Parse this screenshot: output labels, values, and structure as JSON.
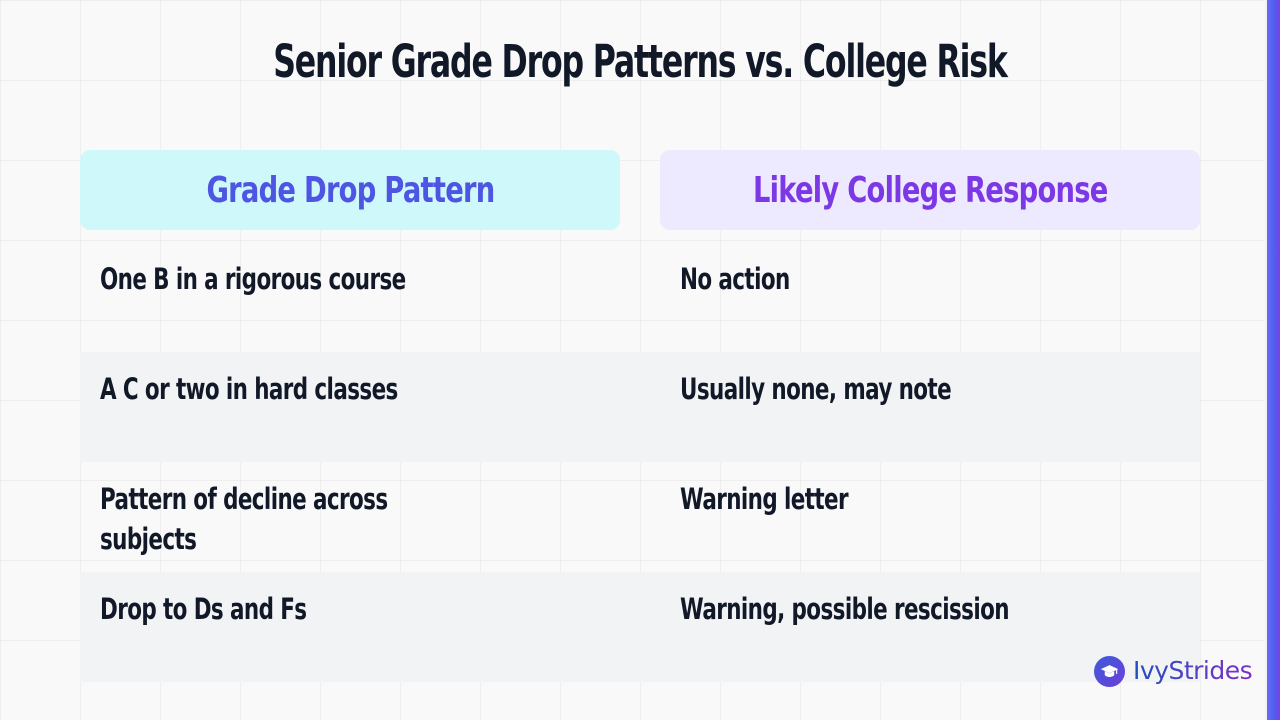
{
  "title": "Senior Grade Drop Patterns vs. College Risk",
  "table": {
    "headers": [
      "Grade Drop Pattern",
      "Likely College Response"
    ],
    "rows": [
      {
        "pattern": "One B in a rigorous course",
        "response": "No action"
      },
      {
        "pattern": "A C or two in hard classes",
        "response": "Usually none, may note"
      },
      {
        "pattern": "Pattern of decline across subjects",
        "response": "Warning letter"
      },
      {
        "pattern": "Drop to Ds and Fs",
        "response": "Warning, possible rescission"
      }
    ]
  },
  "brand": {
    "name": "IvyStrides",
    "icon": "graduation-cap-icon"
  },
  "colors": {
    "left_header_bg": "#cff8fb",
    "left_header_text": "#4f55e3",
    "right_header_bg": "#ede9fe",
    "right_header_text": "#7d38e6",
    "text": "#111827",
    "accent_bar": "#5b5ff0"
  }
}
